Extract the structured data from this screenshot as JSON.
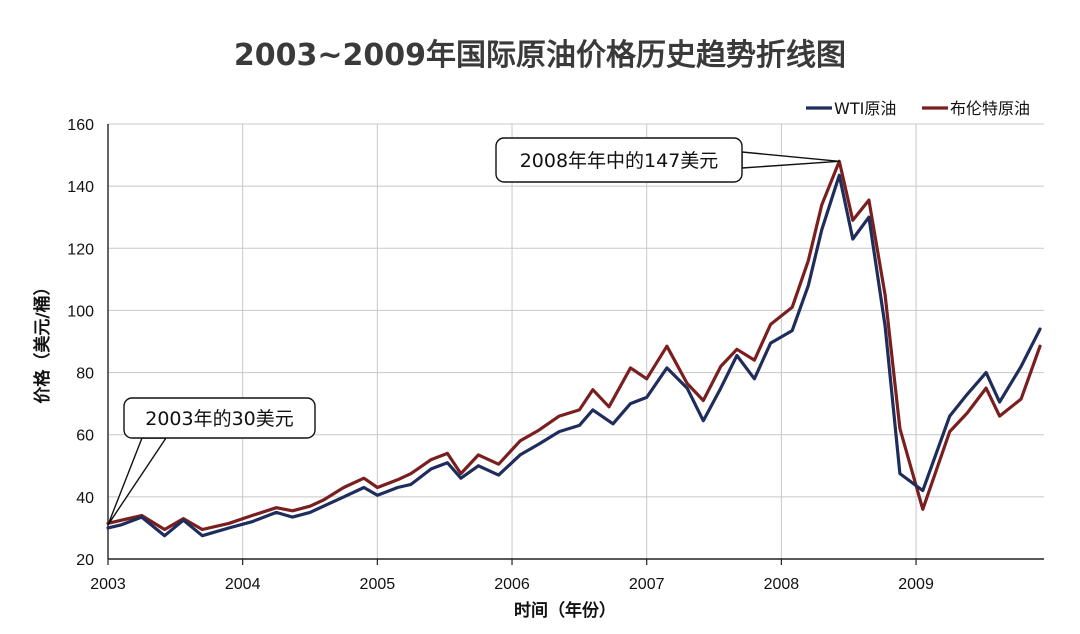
{
  "chart_data": {
    "type": "line",
    "title": "2003~2009年国际原油价格历史趋势折线图",
    "xlabel": "时间（年份）",
    "ylabel": "价格（美元/桶）",
    "xlim": [
      2003,
      2009.95
    ],
    "ylim": [
      20,
      160
    ],
    "x_ticks": [
      "2003",
      "2004",
      "2005",
      "2006",
      "2007",
      "2008",
      "2009"
    ],
    "y_ticks": [
      "20",
      "40",
      "60",
      "80",
      "100",
      "120",
      "140",
      "160"
    ],
    "grid": true,
    "legend_position": "top-right",
    "series": [
      {
        "name": "WTI原油",
        "color": "#1f2d5c",
        "x": [
          2003.0,
          2003.1,
          2003.25,
          2003.42,
          2003.56,
          2003.7,
          2003.9,
          2004.07,
          2004.25,
          2004.37,
          2004.5,
          2004.6,
          2004.75,
          2004.9,
          2005.0,
          2005.15,
          2005.25,
          2005.4,
          2005.52,
          2005.62,
          2005.75,
          2005.9,
          2006.06,
          2006.2,
          2006.35,
          2006.5,
          2006.6,
          2006.75,
          2006.88,
          2007.0,
          2007.15,
          2007.3,
          2007.42,
          2007.55,
          2007.67,
          2007.8,
          2007.92,
          2008.08,
          2008.2,
          2008.3,
          2008.43,
          2008.53,
          2008.65,
          2008.77,
          2008.88,
          2009.05,
          2009.25,
          2009.38,
          2009.52,
          2009.62,
          2009.78,
          2009.92
        ],
        "values": [
          30,
          31,
          33.5,
          27.5,
          32.5,
          27.5,
          30,
          32,
          35,
          33.5,
          35,
          37,
          40,
          43,
          40.5,
          43,
          44,
          49,
          51,
          46,
          50,
          47,
          53.5,
          57,
          61,
          63,
          68,
          63.5,
          70,
          72,
          81.5,
          75,
          64.5,
          75,
          85.5,
          78,
          89.5,
          93.5,
          108,
          126,
          143.5,
          123,
          130,
          95,
          47.5,
          42,
          66,
          73,
          80,
          70.5,
          82,
          94
        ]
      },
      {
        "name": "布伦特原油",
        "color": "#7a1f1f",
        "x": [
          2003.0,
          2003.1,
          2003.25,
          2003.42,
          2003.56,
          2003.7,
          2003.9,
          2004.07,
          2004.25,
          2004.37,
          2004.5,
          2004.6,
          2004.75,
          2004.9,
          2005.0,
          2005.15,
          2005.25,
          2005.4,
          2005.52,
          2005.62,
          2005.75,
          2005.9,
          2006.06,
          2006.2,
          2006.35,
          2006.5,
          2006.6,
          2006.72,
          2006.88,
          2007.0,
          2007.15,
          2007.3,
          2007.42,
          2007.55,
          2007.67,
          2007.8,
          2007.92,
          2008.08,
          2008.2,
          2008.3,
          2008.43,
          2008.53,
          2008.65,
          2008.77,
          2008.88,
          2009.05,
          2009.25,
          2009.38,
          2009.52,
          2009.62,
          2009.78,
          2009.92
        ],
        "values": [
          31.5,
          32.5,
          34,
          29.5,
          33,
          29.5,
          31.5,
          34,
          36.5,
          35.5,
          37,
          39,
          43,
          46,
          43,
          45.5,
          47.5,
          52,
          54,
          47.5,
          53.5,
          50.5,
          58,
          61.5,
          66,
          68,
          74.5,
          69,
          81.5,
          78,
          88.5,
          76.5,
          71,
          82,
          87.5,
          84,
          95.5,
          101,
          116,
          134,
          148,
          129,
          135.5,
          105,
          62,
          36,
          61,
          67,
          75,
          66,
          71.5,
          88.5
        ]
      }
    ],
    "annotations": [
      {
        "text": "2003年的30美元",
        "x": 2003.0,
        "y": 31
      },
      {
        "text": "2008年年中的147美元",
        "x": 2008.43,
        "y": 148
      }
    ]
  }
}
